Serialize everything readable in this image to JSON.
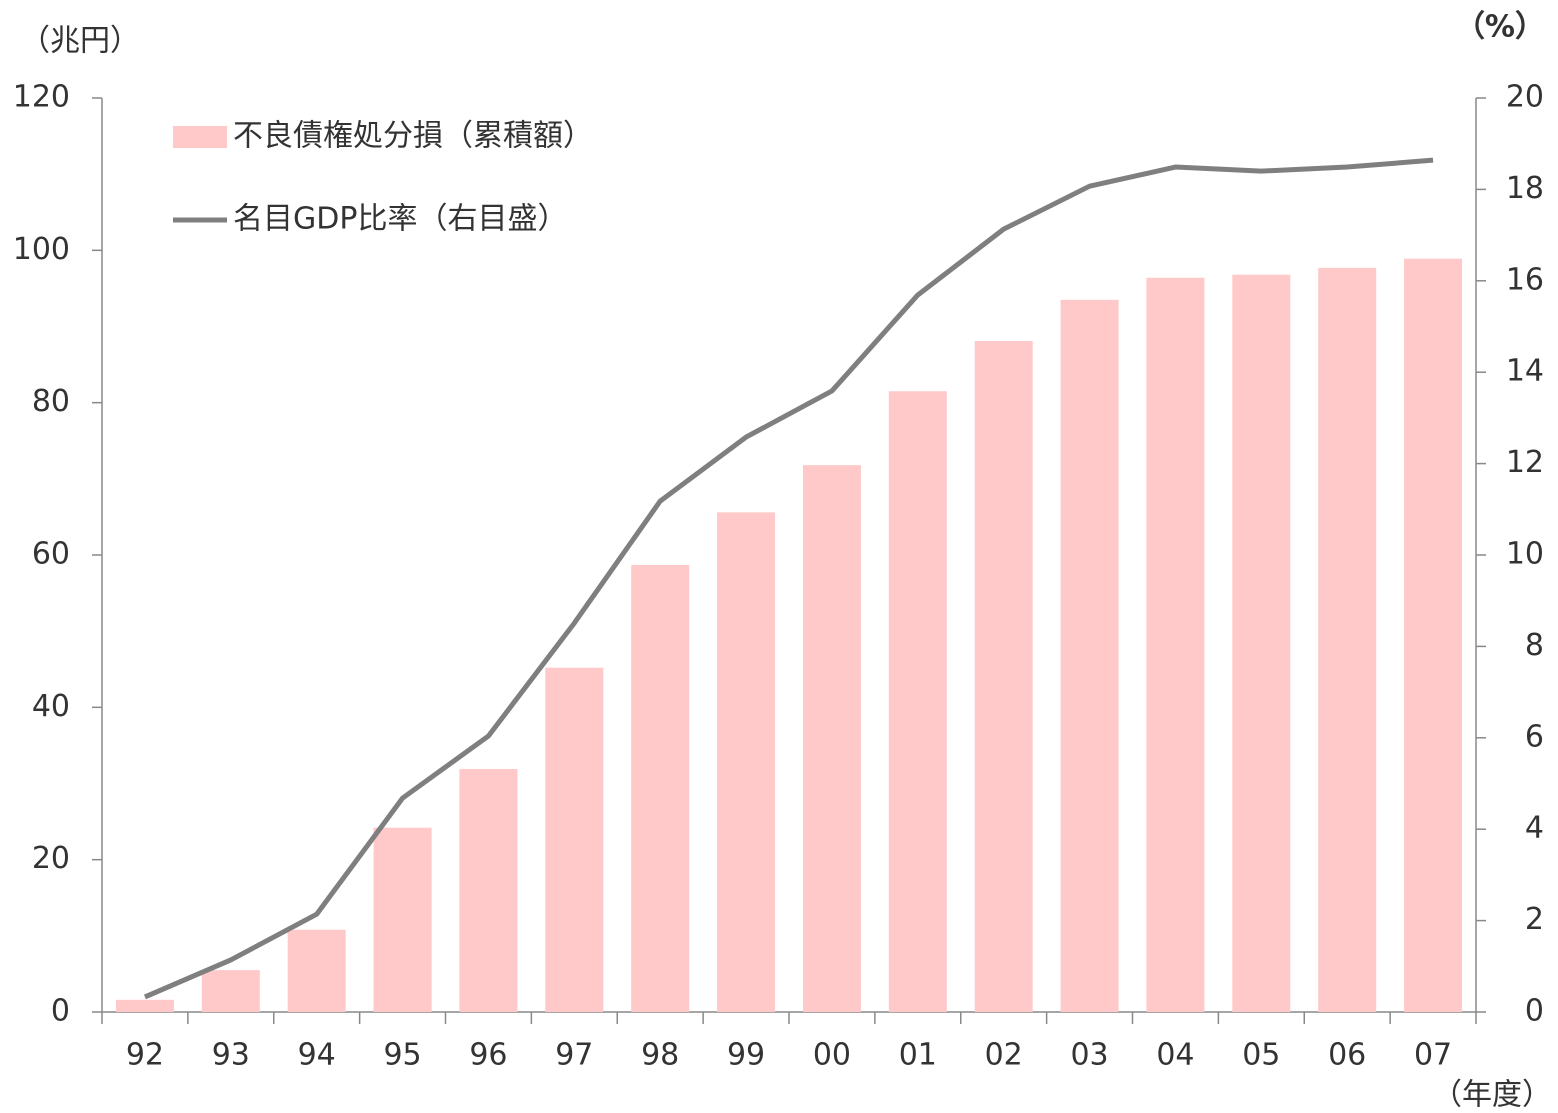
{
  "chart_data": {
    "type": "bar-line",
    "y_label": "（兆円）",
    "y2_label": "（%）",
    "x_label": "（年度）",
    "categories": [
      "92",
      "93",
      "94",
      "95",
      "96",
      "97",
      "98",
      "99",
      "00",
      "01",
      "02",
      "03",
      "04",
      "05",
      "06",
      "07"
    ],
    "series": [
      {
        "name": "不良債権処分損（累積額）",
        "type": "bar",
        "color": "#ffc9c9",
        "values": [
          1.6,
          5.5,
          10.8,
          24.2,
          31.9,
          45.2,
          58.7,
          65.6,
          71.8,
          81.5,
          88.1,
          93.5,
          96.4,
          96.8,
          97.7,
          98.9
        ]
      },
      {
        "name": "名目GDP比率（右目盛）",
        "type": "line",
        "axis": "y2",
        "color": "#7f7f7f",
        "values": [
          0.33,
          1.14,
          2.14,
          4.68,
          6.04,
          8.51,
          11.18,
          12.58,
          13.59,
          15.69,
          17.13,
          18.07,
          18.49,
          18.4,
          18.49,
          18.64
        ]
      }
    ],
    "ylim": [
      0,
      120
    ],
    "yticks": [
      0,
      20,
      40,
      60,
      80,
      100,
      120
    ],
    "y2lim": [
      0,
      20
    ],
    "y2ticks": [
      0,
      2,
      4,
      6,
      8,
      10,
      12,
      14,
      16,
      18,
      20
    ],
    "legend": "top-left",
    "grid": false
  }
}
